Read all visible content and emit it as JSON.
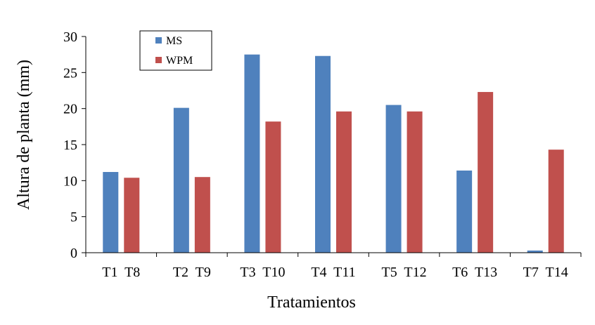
{
  "chart_data": {
    "type": "bar",
    "title": "",
    "xlabel": "Tratamientos",
    "ylabel": "Altura de planta (mm)",
    "ylim": [
      0,
      30
    ],
    "yticks": [
      0,
      5,
      10,
      15,
      20,
      25,
      30
    ],
    "grid": false,
    "legend_position": "top-left",
    "categories": [
      "T1  T8",
      "T2  T9",
      "T3  T10",
      "T4  T11",
      "T5  T12",
      "T6  T13",
      "T7  T14"
    ],
    "series": [
      {
        "name": "MS",
        "color": "#4f81bd",
        "values": [
          11.2,
          20.1,
          27.5,
          27.3,
          20.5,
          11.4,
          0.3
        ]
      },
      {
        "name": "WPM",
        "color": "#c0504d",
        "values": [
          10.4,
          10.5,
          18.2,
          19.6,
          19.6,
          22.3,
          14.3
        ]
      }
    ]
  }
}
